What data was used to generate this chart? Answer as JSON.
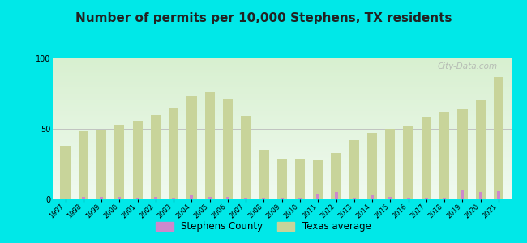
{
  "title": "Number of permits per 10,000 Stephens, TX residents",
  "years": [
    1997,
    1998,
    1999,
    2000,
    2001,
    2002,
    2003,
    2004,
    2005,
    2006,
    2007,
    2008,
    2009,
    2010,
    2011,
    2012,
    2013,
    2014,
    2015,
    2016,
    2017,
    2018,
    2019,
    2020,
    2021
  ],
  "texas_avg": [
    38,
    48,
    49,
    53,
    56,
    60,
    65,
    73,
    76,
    71,
    59,
    35,
    29,
    29,
    28,
    33,
    42,
    47,
    50,
    52,
    58,
    62,
    64,
    70,
    87
  ],
  "stephens": [
    0,
    2,
    2,
    2,
    1,
    2,
    1,
    3,
    2,
    2,
    1,
    1,
    1,
    1,
    4,
    5,
    1,
    3,
    2,
    1,
    1,
    1,
    7,
    5,
    6
  ],
  "texas_color": "#c8d49a",
  "stephens_color": "#cc88cc",
  "background_top": "#f0faf0",
  "background_bottom": "#d8f0d0",
  "outer_background": "#00e8e8",
  "ylim": [
    0,
    100
  ],
  "yticks": [
    0,
    50,
    100
  ],
  "texas_bar_width": 0.55,
  "stephens_bar_width": 0.18,
  "legend_labels": [
    "Stephens County",
    "Texas average"
  ],
  "watermark": "City-Data.com",
  "title_fontsize": 11,
  "tick_fontsize": 6,
  "legend_fontsize": 8.5
}
